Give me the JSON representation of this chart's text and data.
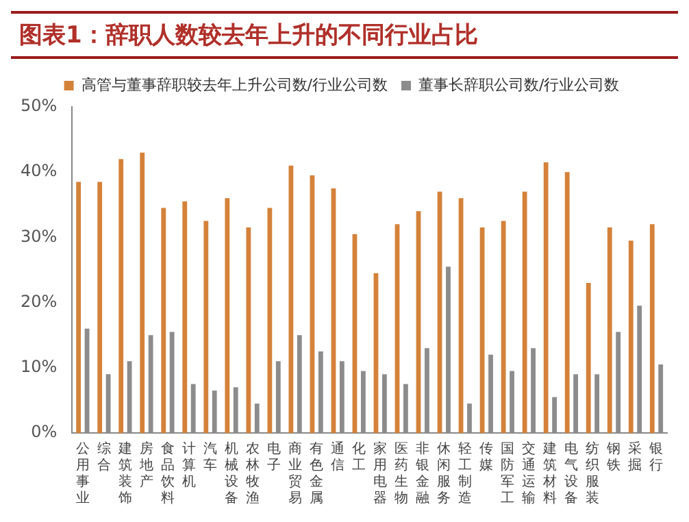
{
  "chart_data": {
    "type": "bar",
    "title": "图表1：辞职人数较去年上升的不同行业占比",
    "categories": [
      "公用事业",
      "综合",
      "建筑装饰",
      "房地产",
      "食品饮料",
      "计算机",
      "汽车",
      "机械设备",
      "农林牧渔",
      "电子",
      "商业贸易",
      "有色金属",
      "通信",
      "化工",
      "家用电器",
      "医药生物",
      "非银金融",
      "休闲服务",
      "轻工制造",
      "传媒",
      "国防军工",
      "交通运输",
      "建筑材料",
      "电气设备",
      "纺织服装",
      "钢铁",
      "采掘",
      "银行"
    ],
    "series": [
      {
        "name": "高管与董事辞职较去年上升公司数/行业公司数",
        "color": "#d4823a",
        "values": [
          38.5,
          38.5,
          42,
          43,
          34.5,
          35.5,
          32.5,
          36,
          31.5,
          34.5,
          41,
          39.5,
          37.5,
          30.5,
          24.5,
          32,
          34,
          37,
          36,
          31.5,
          32.5,
          37,
          41.5,
          40,
          23,
          31.5,
          29.5,
          32
        ]
      },
      {
        "name": "董事长辞职公司数/行业公司数",
        "color": "#8c8c8c",
        "values": [
          16,
          9,
          11,
          15,
          15.5,
          7.5,
          6.5,
          7,
          4.5,
          11,
          15,
          12.5,
          11,
          9.5,
          9,
          7.5,
          13,
          25.5,
          4.5,
          12,
          9.5,
          13,
          5.5,
          9,
          9,
          15.5,
          19.5,
          10.5
        ]
      }
    ],
    "ylim": [
      0,
      50
    ],
    "yticks": [
      {
        "value": 0,
        "label": "0%"
      },
      {
        "value": 10,
        "label": "10%"
      },
      {
        "value": 20,
        "label": "20%"
      },
      {
        "value": 30,
        "label": "30%"
      },
      {
        "value": 40,
        "label": "40%"
      },
      {
        "value": 50,
        "label": "50%"
      }
    ],
    "grid": false,
    "legend": "top"
  }
}
